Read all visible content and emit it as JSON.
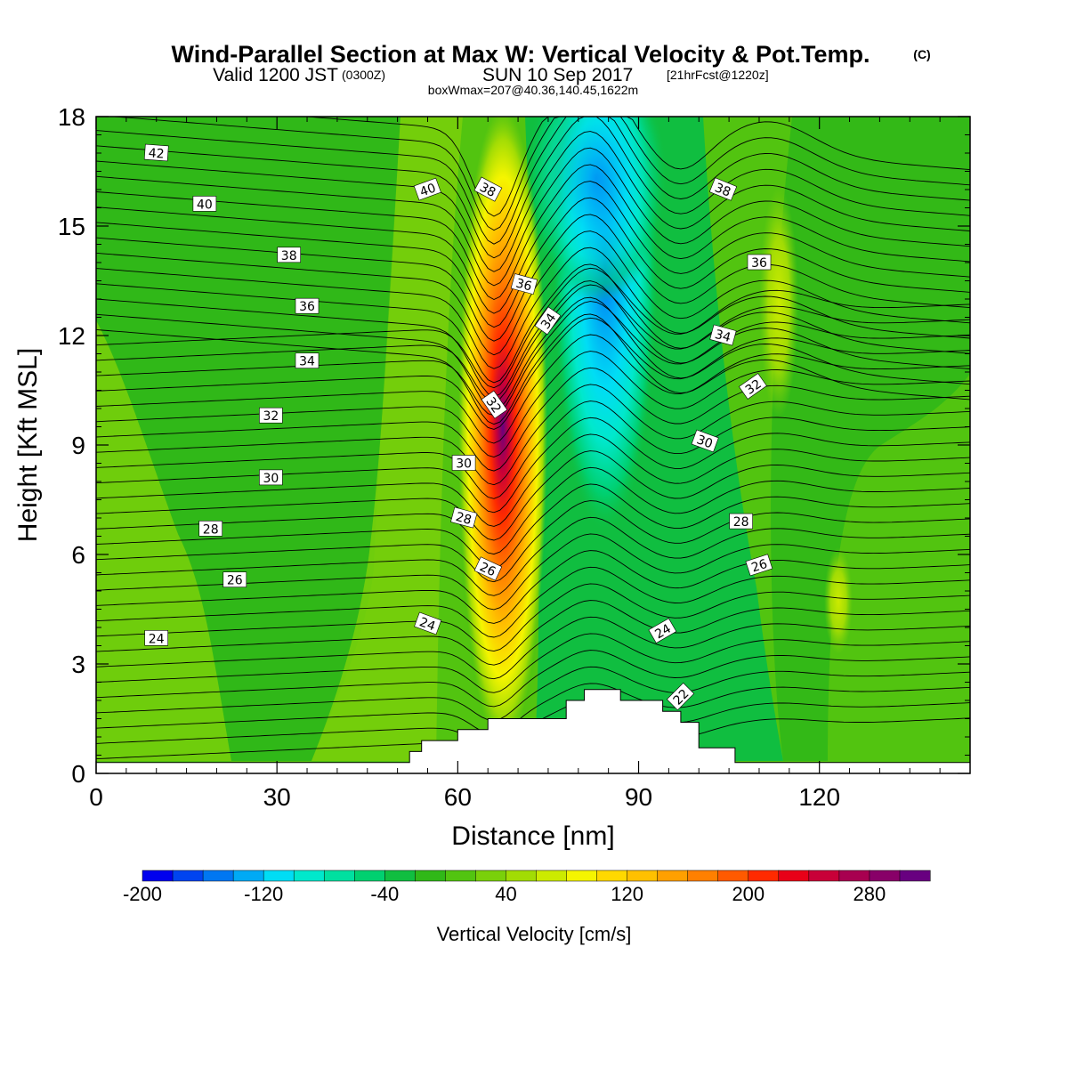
{
  "header": {
    "title": "Wind-Parallel Section at Max W: Vertical Velocity & Pot.Temp.",
    "copyright": "(C)",
    "valid_main": "Valid 1200 JST",
    "valid_zulu": "(0300Z)",
    "valid_date": "SUN 10 Sep 2017",
    "forecast": "[21hrFcst@1220z]",
    "box_info": "boxWmax=207@40.36,140.45,1622m"
  },
  "chart_data": {
    "type": "heatmap",
    "title": "Wind-Parallel Section at Max W: Vertical Velocity & Pot.Temp.",
    "xlabel": "Distance [nm]",
    "ylabel": "Height [Kft MSL]",
    "xlim": [
      0,
      145
    ],
    "ylim": [
      0,
      18
    ],
    "xticks": [
      "0",
      "30",
      "60",
      "90",
      "120"
    ],
    "yticks": [
      "0",
      "3",
      "6",
      "9",
      "12",
      "15",
      "18"
    ],
    "colorbar": {
      "label": "Vertical Velocity [cm/s]",
      "tick_labels": [
        "-200",
        "-120",
        "-40",
        "40",
        "120",
        "200",
        "280"
      ],
      "levels": [
        -200,
        -180,
        -160,
        -140,
        -120,
        -100,
        -80,
        -60,
        -40,
        -20,
        0,
        20,
        40,
        60,
        80,
        100,
        120,
        140,
        160,
        180,
        200,
        220,
        240,
        260,
        280,
        300,
        320
      ],
      "colors": [
        "#0000ee",
        "#0044f0",
        "#0077f2",
        "#00aaf5",
        "#00ddf5",
        "#00e8cc",
        "#00e0a0",
        "#00d070",
        "#10be40",
        "#30b818",
        "#52c410",
        "#7ad00a",
        "#a2dc04",
        "#cceb00",
        "#f5f500",
        "#ffd800",
        "#ffc000",
        "#ffa000",
        "#ff8000",
        "#ff5a00",
        "#ff2a00",
        "#e80018",
        "#c80038",
        "#a80050",
        "#880068",
        "#680080"
      ]
    },
    "updraft": {
      "x": 68,
      "peak_y": 9,
      "peak_value": 320
    },
    "downdraft": {
      "x": 84,
      "peak_y": 17,
      "peak_value": -200
    },
    "terrain": {
      "x": [
        0,
        52,
        52,
        54,
        54,
        60,
        60,
        65,
        65,
        78,
        78,
        81,
        81,
        87,
        87,
        94,
        94,
        97,
        97,
        100,
        100,
        106,
        106,
        145
      ],
      "height": [
        0.3,
        0.3,
        0.6,
        0.6,
        0.9,
        0.9,
        1.2,
        1.2,
        1.5,
        1.5,
        2.0,
        2.0,
        2.3,
        2.3,
        2.0,
        2.0,
        1.7,
        1.7,
        1.4,
        1.4,
        0.7,
        0.7,
        0.3,
        0.3
      ]
    },
    "contour_labels": [
      {
        "text": "42",
        "x": 10,
        "y": 17.0,
        "angle": 4
      },
      {
        "text": "40",
        "x": 18,
        "y": 15.6,
        "angle": 0
      },
      {
        "text": "38",
        "x": 32,
        "y": 14.2,
        "angle": 0
      },
      {
        "text": "36",
        "x": 35,
        "y": 12.8,
        "angle": 0
      },
      {
        "text": "34",
        "x": 35,
        "y": 11.3,
        "angle": 0
      },
      {
        "text": "32",
        "x": 29,
        "y": 9.8,
        "angle": 0
      },
      {
        "text": "30",
        "x": 29,
        "y": 8.1,
        "angle": 0
      },
      {
        "text": "28",
        "x": 19,
        "y": 6.7,
        "angle": 0
      },
      {
        "text": "26",
        "x": 23,
        "y": 5.3,
        "angle": 0
      },
      {
        "text": "24",
        "x": 10,
        "y": 3.7,
        "angle": 0
      },
      {
        "text": "40",
        "x": 55,
        "y": 16.0,
        "angle": -20
      },
      {
        "text": "38",
        "x": 65,
        "y": 16.0,
        "angle": 28
      },
      {
        "text": "36",
        "x": 71,
        "y": 13.4,
        "angle": 15
      },
      {
        "text": "34",
        "x": 75,
        "y": 12.4,
        "angle": -55
      },
      {
        "text": "32",
        "x": 66,
        "y": 10.1,
        "angle": 55
      },
      {
        "text": "30",
        "x": 61,
        "y": 8.5,
        "angle": 0
      },
      {
        "text": "28",
        "x": 61,
        "y": 7.0,
        "angle": 15
      },
      {
        "text": "26",
        "x": 65,
        "y": 5.6,
        "angle": 25
      },
      {
        "text": "24",
        "x": 55,
        "y": 4.1,
        "angle": 20
      },
      {
        "text": "38",
        "x": 104,
        "y": 16.0,
        "angle": 22
      },
      {
        "text": "36",
        "x": 110,
        "y": 14.0,
        "angle": 0
      },
      {
        "text": "34",
        "x": 104,
        "y": 12.0,
        "angle": 15
      },
      {
        "text": "32",
        "x": 109,
        "y": 10.6,
        "angle": -35
      },
      {
        "text": "30",
        "x": 101,
        "y": 9.1,
        "angle": 20
      },
      {
        "text": "28",
        "x": 107,
        "y": 6.9,
        "angle": 0
      },
      {
        "text": "26",
        "x": 110,
        "y": 5.7,
        "angle": -18
      },
      {
        "text": "24",
        "x": 94,
        "y": 3.9,
        "angle": -30
      },
      {
        "text": "22",
        "x": 97,
        "y": 2.1,
        "angle": -45
      }
    ],
    "grid": false,
    "legend": "bottom colorbar"
  }
}
